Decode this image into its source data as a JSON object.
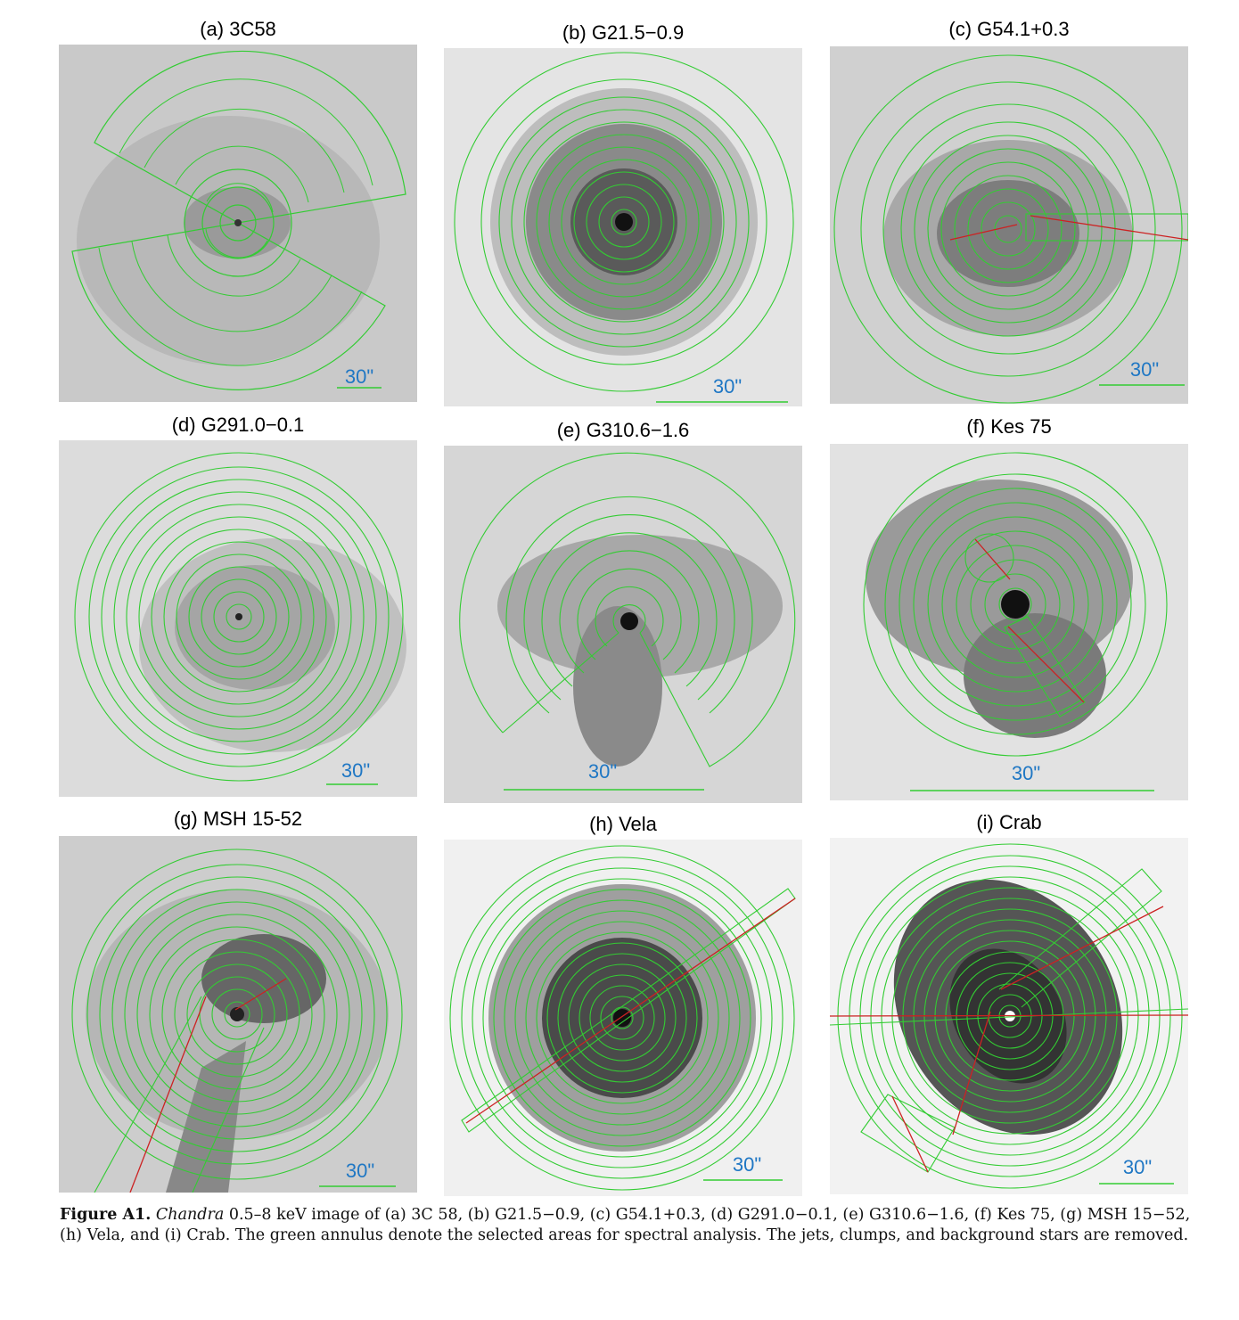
{
  "panels": [
    {
      "title": "(a) 3C58",
      "scale_label": "30\"",
      "kind": "sectors",
      "background": "diffuse",
      "has_red_lines": false
    },
    {
      "title": "(b) G21.5−0.9",
      "scale_label": "30\"",
      "kind": "full",
      "background": "blob",
      "has_red_lines": false
    },
    {
      "title": "(c) G54.1+0.3",
      "scale_label": "30\"",
      "kind": "full",
      "background": "noisy",
      "has_red_lines": true
    },
    {
      "title": "(d) G291.0−0.1",
      "scale_label": "30\"",
      "kind": "full",
      "background": "noisy",
      "has_red_lines": false
    },
    {
      "title": "(e) G310.6−1.6",
      "scale_label": "30\"",
      "kind": "arc",
      "background": "blob",
      "has_red_lines": false
    },
    {
      "title": "(f) Kes 75",
      "scale_label": "30\"",
      "kind": "full",
      "background": "blob",
      "has_red_lines": true
    },
    {
      "title": "(g) MSH 15-52",
      "scale_label": "30\"",
      "kind": "full",
      "background": "noisy",
      "has_red_lines": true
    },
    {
      "title": "(h) Vela",
      "scale_label": "30\"",
      "kind": "full",
      "background": "blob",
      "has_red_lines": true
    },
    {
      "title": "(i) Crab",
      "scale_label": "30\"",
      "kind": "full",
      "background": "blob",
      "has_red_lines": true
    }
  ],
  "colors": {
    "annulus": "#33cc33",
    "jet_line": "#cc2222",
    "scale_text": "#1f77c4"
  },
  "caption": {
    "label": "Figure A1.",
    "instrument": "Chandra",
    "text": " 0.5–8 keV image of (a) 3C 58, (b) G21.5−0.9, (c) G54.1+0.3, (d) G291.0−0.1, (e) G310.6−1.6, (f) Kes 75, (g) MSH 15−52, (h) Vela, and (i) Crab. The green annulus denote the selected areas for spectral analysis. The jets, clumps, and background stars are removed."
  }
}
